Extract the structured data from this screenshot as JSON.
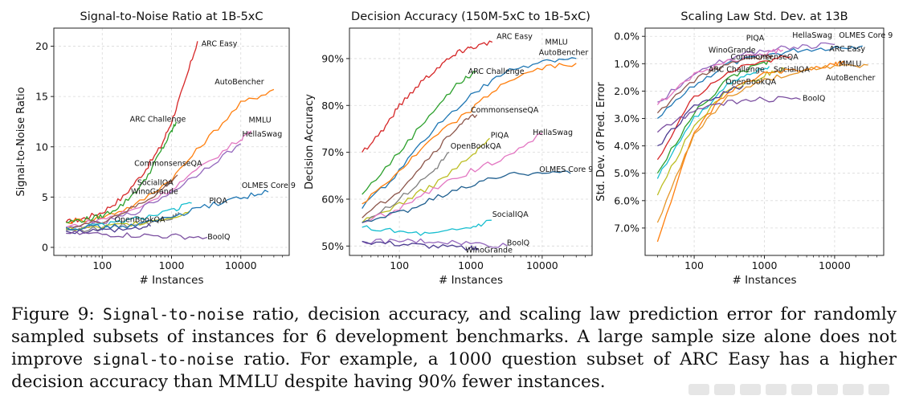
{
  "caption": {
    "label": "Figure 9:",
    "mono_1": "Signal-to-noise",
    "text_1": "ratio, decision accuracy, and scaling law prediction error for randomly sampled subsets of instances for 6 development benchmarks. A large sample size alone does not improve",
    "mono_2": "signal-to-noise",
    "text_2": "ratio. For example, a 1000 question subset of ARC Easy has a higher decision accuracy than MMLU despite having 90% fewer instances."
  },
  "chart_data": [
    {
      "type": "line",
      "title": "Signal-to-Noise Ratio at 1B-5xC",
      "xlabel": "# Instances",
      "ylabel": "Signal-to-Noise Ratio",
      "xscale": "log",
      "xlim": [
        20,
        50000
      ],
      "ylim": [
        -0.8,
        21.8
      ],
      "xticks": [
        100,
        1000,
        10000
      ],
      "xtick_labels": [
        "100",
        "1000",
        "10000"
      ],
      "yticks": [
        0,
        5,
        10,
        15,
        20
      ],
      "ytick_labels": [
        "0",
        "5",
        "10",
        "15",
        "20"
      ],
      "grid": true,
      "series": [
        {
          "name": "ARC Easy",
          "color": "#d62728",
          "x": [
            30,
            50,
            100,
            200,
            400,
            700,
            1000,
            1500,
            2376
          ],
          "y": [
            2.5,
            2.8,
            3.5,
            5.0,
            7.5,
            10.0,
            12.5,
            16.0,
            20.5
          ]
        },
        {
          "name": "AutoBencher",
          "color": "#ff7f0e",
          "x": [
            30,
            100,
            300,
            1000,
            3000,
            10000,
            30000
          ],
          "y": [
            2.5,
            3.0,
            4.2,
            6.8,
            10.5,
            14.3,
            15.7
          ]
        },
        {
          "name": "ARC Challenge",
          "color": "#2ca02c",
          "x": [
            30,
            60,
            100,
            200,
            400,
            700,
            1000,
            1172
          ],
          "y": [
            2.5,
            2.8,
            3.1,
            4.3,
            6.5,
            9.5,
            11.5,
            12.5
          ]
        },
        {
          "name": "MMLU",
          "color": "#e377c2",
          "x": [
            30,
            100,
            300,
            1000,
            3000,
            10000,
            14042
          ],
          "y": [
            2.0,
            2.8,
            3.8,
            5.8,
            8.2,
            10.8,
            11.6
          ]
        },
        {
          "name": "HellaSwag",
          "color": "#9467bd",
          "x": [
            30,
            100,
            300,
            1000,
            3000,
            10000
          ],
          "y": [
            1.8,
            2.4,
            3.5,
            5.5,
            7.8,
            10.3
          ]
        },
        {
          "name": "CommonsenseQA",
          "color": "#8c564b",
          "x": [
            30,
            100,
            300,
            700,
            1221
          ],
          "y": [
            1.9,
            2.6,
            4.0,
            5.6,
            7.2
          ]
        },
        {
          "name": "SocialIQA",
          "color": "#17becf",
          "x": [
            30,
            100,
            300,
            1000,
            1954
          ],
          "y": [
            1.8,
            2.2,
            2.8,
            3.6,
            4.4
          ]
        },
        {
          "name": "WinoGrande",
          "color": "#7f7f7f",
          "x": [
            30,
            100,
            300,
            1000,
            1267
          ],
          "y": [
            1.7,
            1.9,
            2.3,
            3.0,
            3.5
          ]
        },
        {
          "name": "PIQA",
          "color": "#bcbd22",
          "x": [
            30,
            100,
            300,
            1000,
            1838
          ],
          "y": [
            1.8,
            2.0,
            2.4,
            3.0,
            3.6
          ]
        },
        {
          "name": "OLMES Core 9",
          "color": "#1f77b4",
          "x": [
            30,
            100,
            300,
            1000,
            3000,
            10000,
            25000
          ],
          "y": [
            2.0,
            2.0,
            2.2,
            3.0,
            4.0,
            5.0,
            5.5
          ]
        },
        {
          "name": "OpenBookQA",
          "color": "#4c3b91",
          "x": [
            30,
            100,
            300,
            500
          ],
          "y": [
            1.6,
            1.7,
            1.9,
            2.1
          ]
        },
        {
          "name": "BoolQ",
          "color": "#7b4fa0",
          "x": [
            30,
            100,
            300,
            1000,
            3270
          ],
          "y": [
            1.4,
            1.3,
            1.2,
            1.1,
            1.0
          ]
        }
      ],
      "annotations": [
        {
          "text": "ARC Easy",
          "x": 2700,
          "y": 20.0
        },
        {
          "text": "AutoBencher",
          "x": 4200,
          "y": 16.2
        },
        {
          "text": "ARC Challenge",
          "x": 250,
          "y": 12.5
        },
        {
          "text": "MMLU",
          "x": 13000,
          "y": 12.4
        },
        {
          "text": "HellaSwag",
          "x": 10500,
          "y": 11.0
        },
        {
          "text": "CommonsenseQA",
          "x": 290,
          "y": 8.1
        },
        {
          "text": "SocialIQA",
          "x": 320,
          "y": 6.2
        },
        {
          "text": "WinoGrande",
          "x": 260,
          "y": 5.3
        },
        {
          "text": "OLMES Core 9",
          "x": 10300,
          "y": 5.9
        },
        {
          "text": "PIQA",
          "x": 3500,
          "y": 4.4
        },
        {
          "text": "OpenBookQA",
          "x": 150,
          "y": 2.5
        },
        {
          "text": "BoolQ",
          "x": 3300,
          "y": 0.8
        }
      ]
    },
    {
      "type": "line",
      "title": "Decision Accuracy (150M-5xC to 1B-5xC)",
      "xlabel": "# Instances",
      "ylabel": "Decision Accuracy",
      "xscale": "log",
      "xlim": [
        20,
        50000
      ],
      "ylim": [
        48,
        96.5
      ],
      "xticks": [
        100,
        1000,
        10000
      ],
      "xtick_labels": [
        "100",
        "1000",
        "10000"
      ],
      "yticks": [
        50,
        60,
        70,
        80,
        90
      ],
      "ytick_labels": [
        "50%",
        "60%",
        "70%",
        "80%",
        "90%"
      ],
      "grid": true,
      "series": [
        {
          "name": "ARC Easy",
          "color": "#d62728",
          "x": [
            30,
            60,
            100,
            200,
            400,
            700,
            1000,
            2000
          ],
          "y": [
            70,
            75,
            80,
            85,
            89,
            91.5,
            92.5,
            93.5
          ]
        },
        {
          "name": "MMLU",
          "color": "#1f77b4",
          "x": [
            30,
            100,
            300,
            1000,
            3000,
            10000,
            30000
          ],
          "y": [
            58,
            66,
            75,
            82,
            87,
            89.5,
            90
          ]
        },
        {
          "name": "AutoBencher",
          "color": "#ff7f0e",
          "x": [
            30,
            100,
            300,
            1000,
            3000,
            10000,
            30000
          ],
          "y": [
            59,
            66,
            73,
            79,
            85,
            88,
            89
          ]
        },
        {
          "name": "ARC Challenge",
          "color": "#2ca02c",
          "x": [
            30,
            100,
            300,
            700,
            1172
          ],
          "y": [
            61,
            70,
            79,
            85,
            87
          ]
        },
        {
          "name": "CommonsenseQA",
          "color": "#8c564b",
          "x": [
            30,
            100,
            300,
            700,
            1221
          ],
          "y": [
            56,
            62,
            70,
            76,
            78
          ]
        },
        {
          "name": "PIQA",
          "color": "#bcbd22",
          "x": [
            30,
            100,
            300,
            1000,
            1838
          ],
          "y": [
            55,
            59,
            63,
            69,
            73
          ]
        },
        {
          "name": "OpenBookQA",
          "color": "#7f7f7f",
          "x": [
            30,
            100,
            300,
            500
          ],
          "y": [
            55,
            60,
            66,
            70
          ]
        },
        {
          "name": "HellaSwag",
          "color": "#e377c2",
          "x": [
            30,
            100,
            300,
            1000,
            3000,
            10000
          ],
          "y": [
            55,
            58,
            62,
            66,
            69,
            74
          ]
        },
        {
          "name": "OLMES Core 9",
          "color": "#1f5f8f",
          "x": [
            30,
            100,
            300,
            1000,
            3000,
            10000,
            25000
          ],
          "y": [
            55,
            57,
            60,
            63,
            65,
            66,
            65.5
          ]
        },
        {
          "name": "SocialIQA",
          "color": "#17becf",
          "x": [
            30,
            100,
            300,
            1000,
            1954
          ],
          "y": [
            54,
            53,
            52.5,
            54,
            55.5
          ]
        },
        {
          "name": "BoolQ",
          "color": "#9467bd",
          "x": [
            30,
            100,
            300,
            1000,
            3270
          ],
          "y": [
            51,
            51,
            51,
            50.5,
            50
          ]
        },
        {
          "name": "WinoGrande",
          "color": "#4c3b91",
          "x": [
            30,
            100,
            300,
            1000,
            1267
          ],
          "y": [
            51,
            50.5,
            50,
            49.5,
            49.5
          ]
        }
      ],
      "annotations": [
        {
          "text": "ARC Easy",
          "x": 2300,
          "y": 94.2
        },
        {
          "text": "MMLU",
          "x": 11000,
          "y": 93.0
        },
        {
          "text": "AutoBencher",
          "x": 9000,
          "y": 90.8
        },
        {
          "text": "ARC Challenge",
          "x": 920,
          "y": 86.7
        },
        {
          "text": "CommonsenseQA",
          "x": 1000,
          "y": 78.5
        },
        {
          "text": "PIQA",
          "x": 1900,
          "y": 73.1
        },
        {
          "text": "HellaSwag",
          "x": 7400,
          "y": 73.7
        },
        {
          "text": "OpenBookQA",
          "x": 520,
          "y": 70.8
        },
        {
          "text": "OLMES Core 9",
          "x": 9100,
          "y": 65.8
        },
        {
          "text": "SocialIQA",
          "x": 2000,
          "y": 56.2
        },
        {
          "text": "BoolQ",
          "x": 3200,
          "y": 50.1
        },
        {
          "text": "WinoGrande",
          "x": 840,
          "y": 48.6
        }
      ]
    },
    {
      "type": "line",
      "title": "Scaling Law Std. Dev. at 13B",
      "xlabel": "# Instances",
      "ylabel": "Std. Dev. of Pred. Error",
      "xscale": "log",
      "xlim": [
        20,
        50000
      ],
      "ylim": [
        -0.3,
        8.0
      ],
      "yinverted": true,
      "xticks": [
        100,
        1000,
        10000
      ],
      "xtick_labels": [
        "100",
        "1000",
        "10000"
      ],
      "yticks": [
        0,
        1,
        2,
        3,
        4,
        5,
        6,
        7
      ],
      "ytick_labels": [
        "0.0%",
        "1.0%",
        "2.0%",
        "3.0%",
        "4.0%",
        "5.0%",
        "6.0%",
        "7.0%"
      ],
      "grid": true,
      "series": [
        {
          "name": "OLMES Core 9",
          "color": "#1f77b4",
          "x": [
            30,
            100,
            300,
            1000,
            3000,
            10000,
            25000
          ],
          "y": [
            3.0,
            1.8,
            1.0,
            0.7,
            0.5,
            0.4,
            0.35
          ]
        },
        {
          "name": "HellaSwag",
          "color": "#9467bd",
          "x": [
            30,
            100,
            300,
            1000,
            3000,
            10000
          ],
          "y": [
            2.4,
            1.4,
            0.8,
            0.5,
            0.4,
            0.3
          ]
        },
        {
          "name": "PIQA",
          "color": "#e377c2",
          "x": [
            30,
            100,
            300,
            1000,
            1838
          ],
          "y": [
            2.5,
            1.4,
            0.9,
            0.6,
            0.5
          ]
        },
        {
          "name": "WinoGrande",
          "color": "#8c564b",
          "x": [
            30,
            100,
            300,
            1000,
            1267
          ],
          "y": [
            2.8,
            1.6,
            1.0,
            0.75,
            0.7
          ]
        },
        {
          "name": "CommonsenseQA",
          "color": "#2ca02c",
          "x": [
            30,
            100,
            300,
            700,
            1221
          ],
          "y": [
            5.0,
            2.8,
            1.6,
            1.1,
            0.9
          ]
        },
        {
          "name": "ARC Easy",
          "color": "#d62728",
          "x": [
            30,
            100,
            300,
            1000,
            2376
          ],
          "y": [
            4.5,
            2.2,
            1.3,
            0.9,
            0.75
          ]
        },
        {
          "name": "ARC Challenge",
          "color": "#17becf",
          "x": [
            30,
            100,
            300,
            700,
            1172
          ],
          "y": [
            5.2,
            3.0,
            1.8,
            1.3,
            1.1
          ]
        },
        {
          "name": "SocialIQA",
          "color": "#bcbd22",
          "x": [
            30,
            100,
            300,
            1000,
            1954
          ],
          "y": [
            5.8,
            3.2,
            2.0,
            1.4,
            1.2
          ]
        },
        {
          "name": "MMLU",
          "color": "#ff7f0e",
          "x": [
            30,
            100,
            300,
            1000,
            3000,
            10000,
            14042
          ],
          "y": [
            7.5,
            3.5,
            2.0,
            1.4,
            1.2,
            1.0,
            1.0
          ]
        },
        {
          "name": "AutoBencher",
          "color": "#e69528",
          "x": [
            30,
            100,
            300,
            1000,
            3000,
            10000,
            30000
          ],
          "y": [
            6.8,
            3.6,
            2.2,
            1.6,
            1.3,
            1.1,
            1.05
          ]
        },
        {
          "name": "OpenBookQA",
          "color": "#4c3b91",
          "x": [
            30,
            100,
            300,
            500
          ],
          "y": [
            4.0,
            2.6,
            2.0,
            1.8
          ]
        },
        {
          "name": "BoolQ",
          "color": "#7b4fa0",
          "x": [
            30,
            100,
            300,
            1000,
            3270
          ],
          "y": [
            3.5,
            2.7,
            2.4,
            2.3,
            2.3
          ]
        }
      ],
      "annotations": [
        {
          "text": "PIQA",
          "x": 550,
          "y": 0.15
        },
        {
          "text": "HellaSwag",
          "x": 2500,
          "y": 0.05
        },
        {
          "text": "OLMES Core 9",
          "x": 11500,
          "y": 0.05
        },
        {
          "text": "WinoGrande",
          "x": 160,
          "y": 0.6
        },
        {
          "text": "CommonsenseQA",
          "x": 330,
          "y": 0.85
        },
        {
          "text": "ARC Easy",
          "x": 8400,
          "y": 0.55
        },
        {
          "text": "ARC Challenge",
          "x": 160,
          "y": 1.3
        },
        {
          "text": "SocialIQA",
          "x": 1350,
          "y": 1.3
        },
        {
          "text": "MMLU",
          "x": 11500,
          "y": 1.1
        },
        {
          "text": "AutoBencher",
          "x": 7500,
          "y": 1.6
        },
        {
          "text": "OpenBookQA",
          "x": 280,
          "y": 1.75
        },
        {
          "text": "BoolQ",
          "x": 3500,
          "y": 2.35
        }
      ]
    }
  ]
}
